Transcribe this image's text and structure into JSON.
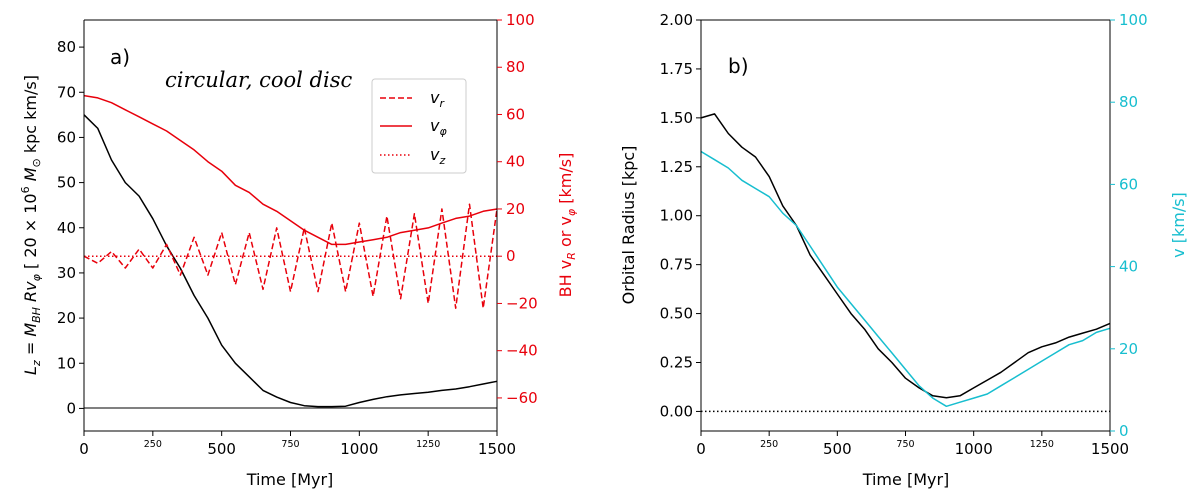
{
  "chart_data": [
    {
      "panel": "a)",
      "type": "line",
      "annotation": "circular, cool disc",
      "xlabel": "Time [Myr]",
      "xlim": [
        0,
        1500
      ],
      "x_ticks": [
        {
          "value": 0,
          "label": "0",
          "size": "large"
        },
        {
          "value": 250,
          "label": "250",
          "size": "small"
        },
        {
          "value": 500,
          "label": "500",
          "size": "large"
        },
        {
          "value": 750,
          "label": "750",
          "size": "small"
        },
        {
          "value": 1000,
          "label": "1000",
          "size": "large"
        },
        {
          "value": 1250,
          "label": "1250",
          "size": "small"
        },
        {
          "value": 1500,
          "label": "1500",
          "size": "large"
        }
      ],
      "ylabel_left": "L_z = M_BH R v_φ [ 20 × 10^6 M_⊙ kpc km/s]",
      "ylabel_left_parts": {
        "l": "L",
        "z": "z",
        "eq": " = M",
        "bh": "BH",
        "r": " Rv",
        "phi": "φ",
        "bracket": " [ 20 × 10",
        "exp": "6",
        "m": " M",
        "sun": "⊙",
        "units": " kpc km/s]"
      },
      "ylim_left": [
        -5,
        86
      ],
      "y_ticks_left": [
        0,
        10,
        20,
        30,
        40,
        50,
        60,
        70,
        80
      ],
      "ylabel_right": "BH v_R or v_φ [km/s]",
      "ylabel_right_parts": {
        "bh": "BH v",
        "r": "R",
        "or": " or v",
        "phi": "φ",
        "units": " [km/s]"
      },
      "ylim_right": [
        -74,
        100
      ],
      "y_ticks_right": [
        {
          "value": -60,
          "label": "−60"
        },
        {
          "value": -40,
          "label": "−40"
        },
        {
          "value": -20,
          "label": "−20"
        },
        {
          "value": 0,
          "label": "0"
        },
        {
          "value": 20,
          "label": "20"
        },
        {
          "value": 40,
          "label": "40"
        },
        {
          "value": 60,
          "label": "60"
        },
        {
          "value": 80,
          "label": "80"
        },
        {
          "value": 100,
          "label": "100"
        }
      ],
      "right_axis_color": "#e8000b",
      "legend": [
        {
          "label": "v_r",
          "symbol": "v",
          "sub": "r",
          "style": "dashed"
        },
        {
          "label": "v_φ",
          "symbol": "v",
          "sub": "φ",
          "style": "solid"
        },
        {
          "label": "v_z",
          "symbol": "v",
          "sub": "z",
          "style": "dotted"
        }
      ],
      "legend_position": "top-right",
      "series": [
        {
          "name": "L_z",
          "axis": "left",
          "color": "#000000",
          "style": "solid",
          "x": [
            0,
            50,
            100,
            150,
            200,
            250,
            300,
            350,
            400,
            450,
            500,
            550,
            600,
            650,
            700,
            750,
            800,
            850,
            900,
            950,
            1000,
            1050,
            1100,
            1150,
            1200,
            1250,
            1300,
            1350,
            1400,
            1450,
            1500
          ],
          "y": [
            65,
            62,
            55,
            50,
            47,
            42,
            36,
            31,
            25,
            20,
            14,
            10,
            7,
            4,
            2.5,
            1.3,
            0.6,
            0.4,
            0.4,
            0.5,
            1.3,
            2,
            2.6,
            3,
            3.3,
            3.6,
            4,
            4.3,
            4.8,
            5.4,
            6
          ]
        },
        {
          "name": "v_φ",
          "axis": "right",
          "color": "#e8000b",
          "style": "solid",
          "x": [
            0,
            50,
            100,
            150,
            200,
            250,
            300,
            350,
            400,
            450,
            500,
            550,
            600,
            650,
            700,
            750,
            800,
            850,
            900,
            950,
            1000,
            1050,
            1100,
            1150,
            1200,
            1250,
            1300,
            1350,
            1400,
            1450,
            1500
          ],
          "y": [
            68,
            67,
            65,
            62,
            59,
            56,
            53,
            49,
            45,
            40,
            36,
            30,
            27,
            22,
            19,
            15,
            11,
            8,
            5,
            5,
            6,
            7,
            8,
            10,
            11,
            12,
            14,
            16,
            17,
            19,
            20
          ]
        },
        {
          "name": "v_r",
          "axis": "right",
          "color": "#e8000b",
          "style": "dashed",
          "x": [
            0,
            50,
            100,
            150,
            200,
            250,
            300,
            350,
            400,
            450,
            500,
            550,
            600,
            650,
            700,
            750,
            800,
            850,
            900,
            950,
            1000,
            1050,
            1100,
            1150,
            1200,
            1250,
            1300,
            1350,
            1400,
            1450,
            1500
          ],
          "y": [
            0,
            -3,
            2,
            -5,
            3,
            -5,
            5,
            -8,
            8,
            -8,
            10,
            -12,
            10,
            -14,
            12,
            -15,
            12,
            -15,
            14,
            -15,
            14,
            -17,
            17,
            -18,
            18,
            -20,
            20,
            -22,
            22,
            -22,
            20
          ]
        },
        {
          "name": "v_z",
          "axis": "right",
          "color": "#e8000b",
          "style": "dotted",
          "x": [
            0,
            1500
          ],
          "y": [
            0,
            0
          ]
        }
      ]
    },
    {
      "panel": "b)",
      "type": "line",
      "xlabel": "Time [Myr]",
      "xlim": [
        0,
        1500
      ],
      "x_ticks": [
        {
          "value": 0,
          "label": "0",
          "size": "large"
        },
        {
          "value": 250,
          "label": "250",
          "size": "small"
        },
        {
          "value": 500,
          "label": "500",
          "size": "large"
        },
        {
          "value": 750,
          "label": "750",
          "size": "small"
        },
        {
          "value": 1000,
          "label": "1000",
          "size": "large"
        },
        {
          "value": 1250,
          "label": "1250",
          "size": "small"
        },
        {
          "value": 1500,
          "label": "1500",
          "size": "large"
        }
      ],
      "ylabel_left": "Orbital Radius [kpc]",
      "ylim_left": [
        -0.1,
        2.0
      ],
      "y_ticks_left": [
        {
          "value": 0.0,
          "label": "0.00"
        },
        {
          "value": 0.25,
          "label": "0.25"
        },
        {
          "value": 0.5,
          "label": "0.50"
        },
        {
          "value": 0.75,
          "label": "0.75"
        },
        {
          "value": 1.0,
          "label": "1.00"
        },
        {
          "value": 1.25,
          "label": "1.25"
        },
        {
          "value": 1.5,
          "label": "1.50"
        },
        {
          "value": 1.75,
          "label": "1.75"
        },
        {
          "value": 2.0,
          "label": "2.00"
        }
      ],
      "ylabel_right": "v [km/s]",
      "ylim_right": [
        0,
        100
      ],
      "y_ticks_right": [
        {
          "value": 0,
          "label": "0"
        },
        {
          "value": 20,
          "label": "20"
        },
        {
          "value": 40,
          "label": "40"
        },
        {
          "value": 60,
          "label": "60"
        },
        {
          "value": 80,
          "label": "80"
        },
        {
          "value": 100,
          "label": "100"
        }
      ],
      "right_axis_color": "#17becf",
      "series": [
        {
          "name": "Orbital Radius",
          "axis": "left",
          "color": "#000000",
          "style": "solid",
          "x": [
            0,
            50,
            100,
            150,
            200,
            250,
            300,
            350,
            400,
            450,
            500,
            550,
            600,
            650,
            700,
            750,
            800,
            850,
            900,
            950,
            1000,
            1050,
            1100,
            1150,
            1200,
            1250,
            1300,
            1350,
            1400,
            1450,
            1500
          ],
          "y": [
            1.5,
            1.52,
            1.42,
            1.35,
            1.3,
            1.2,
            1.05,
            0.95,
            0.8,
            0.7,
            0.6,
            0.5,
            0.42,
            0.32,
            0.25,
            0.17,
            0.12,
            0.08,
            0.07,
            0.08,
            0.12,
            0.16,
            0.2,
            0.25,
            0.3,
            0.33,
            0.35,
            0.38,
            0.4,
            0.42,
            0.45
          ]
        },
        {
          "name": "v",
          "axis": "right",
          "color": "#17becf",
          "style": "solid",
          "x": [
            0,
            50,
            100,
            150,
            200,
            250,
            300,
            350,
            400,
            450,
            500,
            550,
            600,
            650,
            700,
            750,
            800,
            850,
            900,
            950,
            1000,
            1050,
            1100,
            1150,
            1200,
            1250,
            1300,
            1350,
            1400,
            1450,
            1500
          ],
          "y": [
            68,
            66,
            64,
            61,
            59,
            57,
            53,
            50,
            45,
            40,
            35,
            31,
            27,
            23,
            19,
            15,
            11,
            8,
            6,
            7,
            8,
            9,
            11,
            13,
            15,
            17,
            19,
            21,
            22,
            24,
            25
          ]
        },
        {
          "name": "z",
          "axis": "left",
          "color": "#000000",
          "style": "dotted",
          "x": [
            0,
            1500
          ],
          "y": [
            0,
            0
          ]
        }
      ]
    }
  ]
}
